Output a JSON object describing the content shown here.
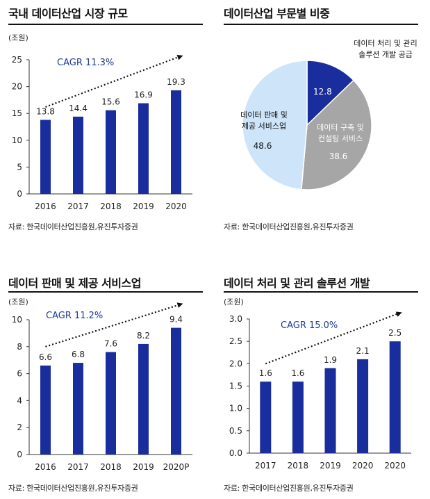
{
  "colors": {
    "bar": "#1a2d9c",
    "cagr": "#1f3a93",
    "pie_dark": "#1a2d9c",
    "pie_gray": "#a6a6a6",
    "pie_light": "#cde4f9"
  },
  "panels": [
    {
      "title": "국내 데이터산업 시장 규모",
      "source": "자료: 한국데이터산업진흥원,유진투자증권",
      "chart_data": {
        "type": "bar",
        "unit": "(조원)",
        "categories": [
          "2016",
          "2017",
          "2018",
          "2019",
          "2020"
        ],
        "values": [
          13.8,
          14.4,
          15.6,
          16.9,
          19.3
        ],
        "value_labels": [
          "13.8",
          "14.4",
          "15.6",
          "16.9",
          "19.3"
        ],
        "ylim": [
          0,
          25
        ],
        "yticks": [
          0,
          5,
          10,
          15,
          20,
          25
        ],
        "ytick_labels": [
          "0",
          "5",
          "10",
          "15",
          "20",
          "25"
        ],
        "annotation": "CAGR 11.3%",
        "trend_arrow": {
          "from_value": 16.2,
          "to_value": 25.8
        }
      }
    },
    {
      "title": "데이터산업 부문별 비중",
      "source": "자료: 한국데이터산업진흥원,유진투자증권",
      "chart_data": {
        "type": "pie",
        "slices": [
          {
            "label_lines": [
              "데이터 처리 및 관리",
              "솔루션 개발 공급"
            ],
            "value": 12.8,
            "value_label": "12.8",
            "color_key": "pie_dark"
          },
          {
            "label_lines": [
              "데이터 구축 및",
              "컨설팅 서비스"
            ],
            "value": 38.6,
            "value_label": "38.6",
            "color_key": "pie_gray"
          },
          {
            "label_lines": [
              "데이터 판매 및",
              "제공 서비스업"
            ],
            "value": 48.6,
            "value_label": "48.6",
            "color_key": "pie_light"
          }
        ]
      }
    },
    {
      "title": "데이터 판매 및 제공 서비스업",
      "source": "자료: 한국데이터산업진흥원,유진투자증권",
      "chart_data": {
        "type": "bar",
        "unit": "(조원)",
        "categories": [
          "2016",
          "2017",
          "2018",
          "2019",
          "2020P"
        ],
        "values": [
          6.6,
          6.8,
          7.6,
          8.2,
          9.4
        ],
        "value_labels": [
          "6.6",
          "6.8",
          "7.6",
          "8.2",
          "9.4"
        ],
        "ylim": [
          0,
          10
        ],
        "yticks": [
          0,
          2,
          4,
          6,
          8,
          10
        ],
        "ytick_labels": [
          "0",
          "2",
          "4",
          "6",
          "8",
          "10"
        ],
        "annotation": "CAGR 11.2%",
        "trend_arrow": {
          "from_value": 8.0,
          "to_value": 11.2
        }
      }
    },
    {
      "title": "데이터 처리 및 관리 솔루션 개발",
      "source": "자료: 한국데이터산업진흥원,유진투자증권",
      "chart_data": {
        "type": "bar",
        "unit": "(조원)",
        "categories": [
          "2017",
          "2018",
          "2019",
          "2020",
          "2020"
        ],
        "values": [
          1.6,
          1.6,
          1.9,
          2.1,
          2.5
        ],
        "value_labels": [
          "1.6",
          "1.6",
          "1.9",
          "2.1",
          "2.5"
        ],
        "ylim": [
          0,
          3.0
        ],
        "yticks": [
          0,
          0.5,
          1.0,
          1.5,
          2.0,
          2.5,
          3.0
        ],
        "ytick_labels": [
          "0.0",
          "0.5",
          "1.0",
          "1.5",
          "2.0",
          "2.5",
          "3.0"
        ],
        "annotation": "CAGR 15.0%",
        "trend_arrow": {
          "from_value": 2.0,
          "to_value": 3.15
        }
      }
    }
  ]
}
